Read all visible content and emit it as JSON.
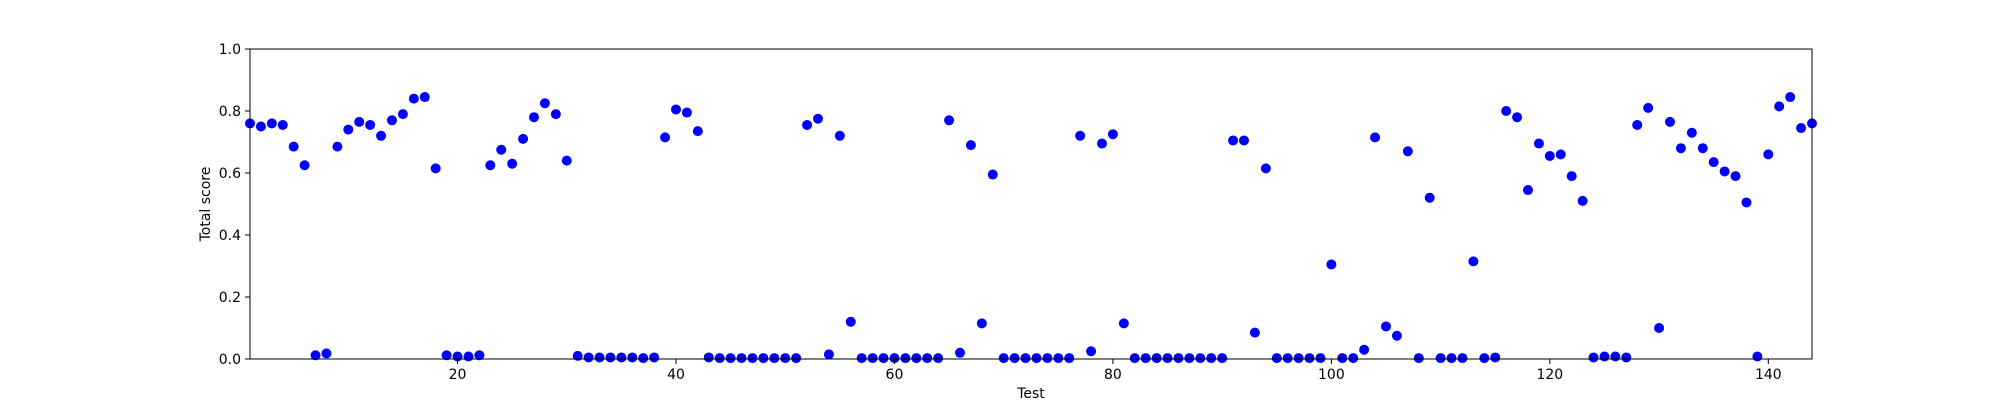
{
  "chart_data": {
    "type": "scatter",
    "title": "",
    "xlabel": "Test",
    "ylabel": "Total score",
    "xlim": [
      1,
      144
    ],
    "ylim": [
      0.0,
      1.0
    ],
    "xticks": [
      20,
      40,
      60,
      80,
      100,
      120,
      140
    ],
    "xtick_labels": [
      "20",
      "40",
      "60",
      "80",
      "100",
      "120",
      "140"
    ],
    "yticks": [
      0.0,
      0.2,
      0.4,
      0.6,
      0.8,
      1.0
    ],
    "ytick_labels": [
      "0.0",
      "0.2",
      "0.4",
      "0.6",
      "0.8",
      "1.0"
    ],
    "grid": false,
    "marker_color": "#0000ff",
    "x": [
      1,
      2,
      3,
      4,
      5,
      6,
      7,
      8,
      9,
      10,
      11,
      12,
      13,
      14,
      15,
      16,
      17,
      18,
      19,
      20,
      21,
      22,
      23,
      24,
      25,
      26,
      27,
      28,
      29,
      30,
      31,
      32,
      33,
      34,
      35,
      36,
      37,
      38,
      39,
      40,
      41,
      42,
      43,
      44,
      45,
      46,
      47,
      48,
      49,
      50,
      51,
      52,
      53,
      54,
      55,
      56,
      57,
      58,
      59,
      60,
      61,
      62,
      63,
      64,
      65,
      66,
      67,
      68,
      69,
      70,
      71,
      72,
      73,
      74,
      75,
      76,
      77,
      78,
      79,
      80,
      81,
      82,
      83,
      84,
      85,
      86,
      87,
      88,
      89,
      90,
      91,
      92,
      93,
      94,
      95,
      96,
      97,
      98,
      99,
      100,
      101,
      102,
      103,
      104,
      105,
      106,
      107,
      108,
      109,
      110,
      111,
      112,
      113,
      114,
      115,
      116,
      117,
      118,
      119,
      120,
      121,
      122,
      123,
      124,
      125,
      126,
      127,
      128,
      129,
      130,
      131,
      132,
      133,
      134,
      135,
      136,
      137,
      138,
      139,
      140,
      141,
      142,
      143,
      144
    ],
    "y": [
      0.76,
      0.75,
      0.76,
      0.755,
      0.685,
      0.625,
      0.012,
      0.018,
      0.685,
      0.74,
      0.765,
      0.755,
      0.72,
      0.77,
      0.79,
      0.84,
      0.845,
      0.615,
      0.012,
      0.008,
      0.008,
      0.012,
      0.625,
      0.675,
      0.63,
      0.71,
      0.78,
      0.825,
      0.79,
      0.64,
      0.01,
      0.005,
      0.005,
      0.005,
      0.005,
      0.005,
      0.003,
      0.005,
      0.715,
      0.805,
      0.795,
      0.735,
      0.005,
      0.003,
      0.003,
      0.003,
      0.003,
      0.003,
      0.003,
      0.003,
      0.003,
      0.755,
      0.775,
      0.015,
      0.72,
      0.12,
      0.003,
      0.003,
      0.003,
      0.003,
      0.003,
      0.003,
      0.003,
      0.003,
      0.77,
      0.02,
      0.69,
      0.115,
      0.595,
      0.003,
      0.003,
      0.003,
      0.003,
      0.003,
      0.003,
      0.003,
      0.72,
      0.025,
      0.695,
      0.725,
      0.115,
      0.003,
      0.003,
      0.003,
      0.003,
      0.003,
      0.003,
      0.003,
      0.003,
      0.003,
      0.705,
      0.705,
      0.085,
      0.615,
      0.003,
      0.003,
      0.003,
      0.003,
      0.003,
      0.305,
      0.003,
      0.003,
      0.03,
      0.715,
      0.105,
      0.075,
      0.67,
      0.003,
      0.52,
      0.003,
      0.003,
      0.003,
      0.315,
      0.003,
      0.005,
      0.8,
      0.78,
      0.545,
      0.695,
      0.655,
      0.66,
      0.59,
      0.51,
      0.005,
      0.008,
      0.008,
      0.005,
      0.755,
      0.81,
      0.1,
      0.765,
      0.68,
      0.73,
      0.68,
      0.635,
      0.605,
      0.59,
      0.505,
      0.008,
      0.66,
      0.815,
      0.845,
      0.745,
      0.76
    ]
  }
}
